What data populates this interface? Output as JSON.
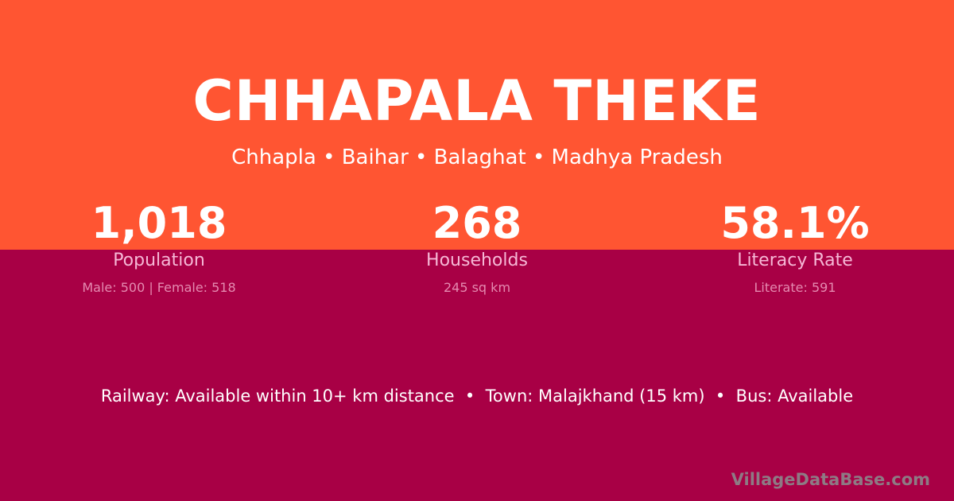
{
  "colors": {
    "top_band": "#ff5532",
    "bottom_band": "#a80045"
  },
  "title": "CHHAPALA THEKE",
  "subtitle": "Chhapla • Baihar • Balaghat • Madhya Pradesh",
  "stats": [
    {
      "value": "1,018",
      "label": "Population",
      "detail": "Male: 500 | Female: 518"
    },
    {
      "value": "268",
      "label": "Households",
      "detail": "245 sq km"
    },
    {
      "value": "58.1%",
      "label": "Literacy Rate",
      "detail": "Literate: 591"
    }
  ],
  "info": "Railway: Available within 10+ km distance  •  Town: Malajkhand (15 km)  •  Bus: Available",
  "watermark": "VillageDataBase.com"
}
